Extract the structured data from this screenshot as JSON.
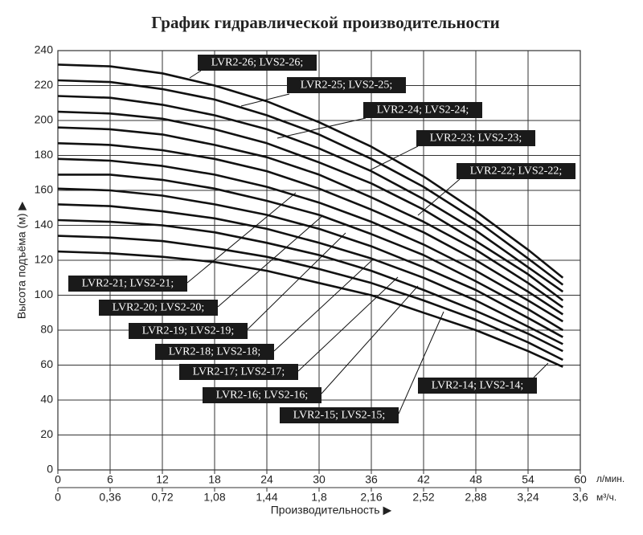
{
  "chart_data": {
    "type": "line",
    "title": "График гидравлической производительности",
    "xlabel": "Производительность ▶",
    "ylabel": "Высота подъёма (м) ▶",
    "x_unit": "л/мин.",
    "x2_unit": "м³/ч.",
    "x": [
      0,
      6,
      12,
      18,
      24,
      30,
      36,
      42,
      48,
      54,
      58
    ],
    "xlim": [
      0,
      60
    ],
    "xticks": [
      0,
      6,
      12,
      18,
      24,
      30,
      36,
      42,
      48,
      54,
      60
    ],
    "x2lim": [
      0,
      3.6
    ],
    "x2ticks": [
      0,
      {
        "value": 0.36,
        "label": "0,36"
      },
      {
        "value": 0.72,
        "label": "0,72"
      },
      {
        "value": 1.08,
        "label": "1,08"
      },
      {
        "value": 1.44,
        "label": "1,44"
      },
      {
        "value": 1.8,
        "label": "1,8"
      },
      {
        "value": 2.16,
        "label": "2,16"
      },
      {
        "value": 2.52,
        "label": "2,52"
      },
      {
        "value": 2.88,
        "label": "2,88"
      },
      {
        "value": 3.24,
        "label": "3,24"
      },
      {
        "value": 3.6,
        "label": "3,6"
      }
    ],
    "ylim": [
      0,
      240
    ],
    "yticks": [
      0,
      20,
      40,
      60,
      80,
      100,
      120,
      140,
      160,
      180,
      200,
      220,
      240
    ],
    "grid": true,
    "series": [
      {
        "name": "LVR2-26; LVS2-26;",
        "color": "#111111",
        "values": [
          232,
          231,
          227,
          220,
          211,
          199,
          185,
          168,
          148,
          126,
          110
        ]
      },
      {
        "name": "LVR2-25; LVS2-25;",
        "color": "#111111",
        "values": [
          223,
          222,
          218,
          212,
          203,
          192,
          178,
          162,
          143,
          121,
          106
        ]
      },
      {
        "name": "LVR2-24; LVS2-24;",
        "color": "#111111",
        "values": [
          214,
          213,
          209,
          203,
          195,
          184,
          171,
          155,
          137,
          116,
          102
        ]
      },
      {
        "name": "LVR2-23; LVS2-23;",
        "color": "#111111",
        "values": [
          205,
          204,
          201,
          195,
          187,
          176,
          164,
          149,
          131,
          112,
          97
        ]
      },
      {
        "name": "LVR2-22; LVS2-22;",
        "color": "#111111",
        "values": [
          196,
          195,
          192,
          186,
          179,
          169,
          156,
          142,
          126,
          107,
          93
        ]
      },
      {
        "name": "LVR2-21; LVS2-21;",
        "color": "#111111",
        "values": [
          187,
          186,
          183,
          178,
          171,
          161,
          149,
          136,
          120,
          102,
          89
        ]
      },
      {
        "name": "LVR2-20; LVS2-20;",
        "color": "#111111",
        "values": [
          178,
          177,
          174,
          169,
          162,
          153,
          142,
          129,
          114,
          97,
          85
        ]
      },
      {
        "name": "LVR2-19; LVS2-19;",
        "color": "#111111",
        "values": [
          169,
          169,
          166,
          161,
          154,
          146,
          135,
          123,
          108,
          92,
          80
        ]
      },
      {
        "name": "LVR2-18; LVS2-18;",
        "color": "#111111",
        "values": [
          161,
          160,
          157,
          152,
          146,
          138,
          128,
          116,
          103,
          87,
          76
        ]
      },
      {
        "name": "LVR2-17; LVS2-17;",
        "color": "#111111",
        "values": [
          152,
          151,
          148,
          144,
          138,
          130,
          121,
          110,
          97,
          82,
          72
        ]
      },
      {
        "name": "LVR2-16; LVS2-16;",
        "color": "#111111",
        "values": [
          143,
          142,
          140,
          136,
          130,
          123,
          114,
          103,
          91,
          78,
          68
        ]
      },
      {
        "name": "LVR2-15; LVS2-15;",
        "color": "#111111",
        "values": [
          134,
          133,
          131,
          127,
          122,
          115,
          107,
          97,
          86,
          73,
          63
        ]
      },
      {
        "name": "LVR2-14; LVS2-14;",
        "color": "#111111",
        "values": [
          125,
          124,
          122,
          119,
          114,
          107,
          100,
          90,
          80,
          68,
          59
        ]
      }
    ]
  }
}
